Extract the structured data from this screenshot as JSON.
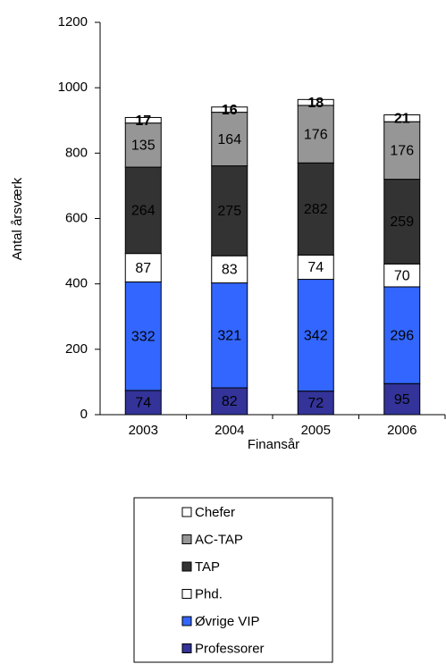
{
  "chart_data": {
    "type": "stacked_bar",
    "x_label": "Finansår",
    "y_label": "Antal årsværk",
    "categories": [
      "2003",
      "2004",
      "2005",
      "2006"
    ],
    "series": [
      {
        "name": "Professorer",
        "color": "#333399",
        "values": [
          74,
          82,
          72,
          95
        ]
      },
      {
        "name": "Øvrige VIP",
        "color": "#3366ff",
        "values": [
          332,
          321,
          342,
          296
        ]
      },
      {
        "name": "Phd.",
        "color": "#ffffff",
        "values": [
          87,
          83,
          74,
          70
        ]
      },
      {
        "name": "TAP",
        "color": "#333333",
        "values": [
          264,
          275,
          282,
          259
        ]
      },
      {
        "name": "AC-TAP",
        "color": "#969696",
        "values": [
          135,
          164,
          176,
          176
        ]
      },
      {
        "name": "Chefer",
        "color": "#ffffff",
        "values": [
          17,
          16,
          18,
          21
        ]
      }
    ],
    "ylim": [
      0,
      1200
    ],
    "yticks": [
      0,
      200,
      400,
      600,
      800,
      1000,
      1200
    ]
  }
}
